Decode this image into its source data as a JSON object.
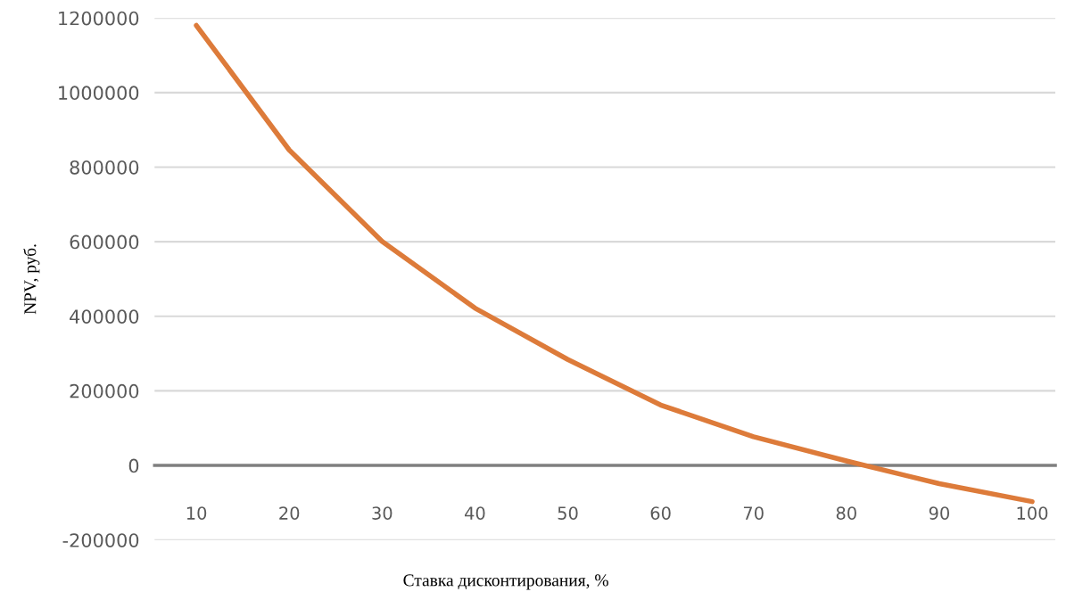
{
  "chart_data": {
    "type": "line",
    "xlabel": "Ставка дисконтирования, %",
    "ylabel": "NPV, руб.",
    "categories": [
      "10",
      "20",
      "30",
      "40",
      "50",
      "60",
      "70",
      "80",
      "90",
      "100"
    ],
    "series": [
      {
        "color": "#dd7b3a",
        "values": [
          1180000,
          846000,
          601000,
          422000,
          284000,
          162000,
          77000,
          12000,
          -49000,
          -97000
        ]
      }
    ],
    "ylim": [
      -200000,
      1200000
    ],
    "yticks": [
      -200000,
      0,
      200000,
      400000,
      600000,
      800000,
      1000000,
      1200000
    ],
    "grid": "y",
    "marker": "none",
    "line_style": "solid"
  }
}
